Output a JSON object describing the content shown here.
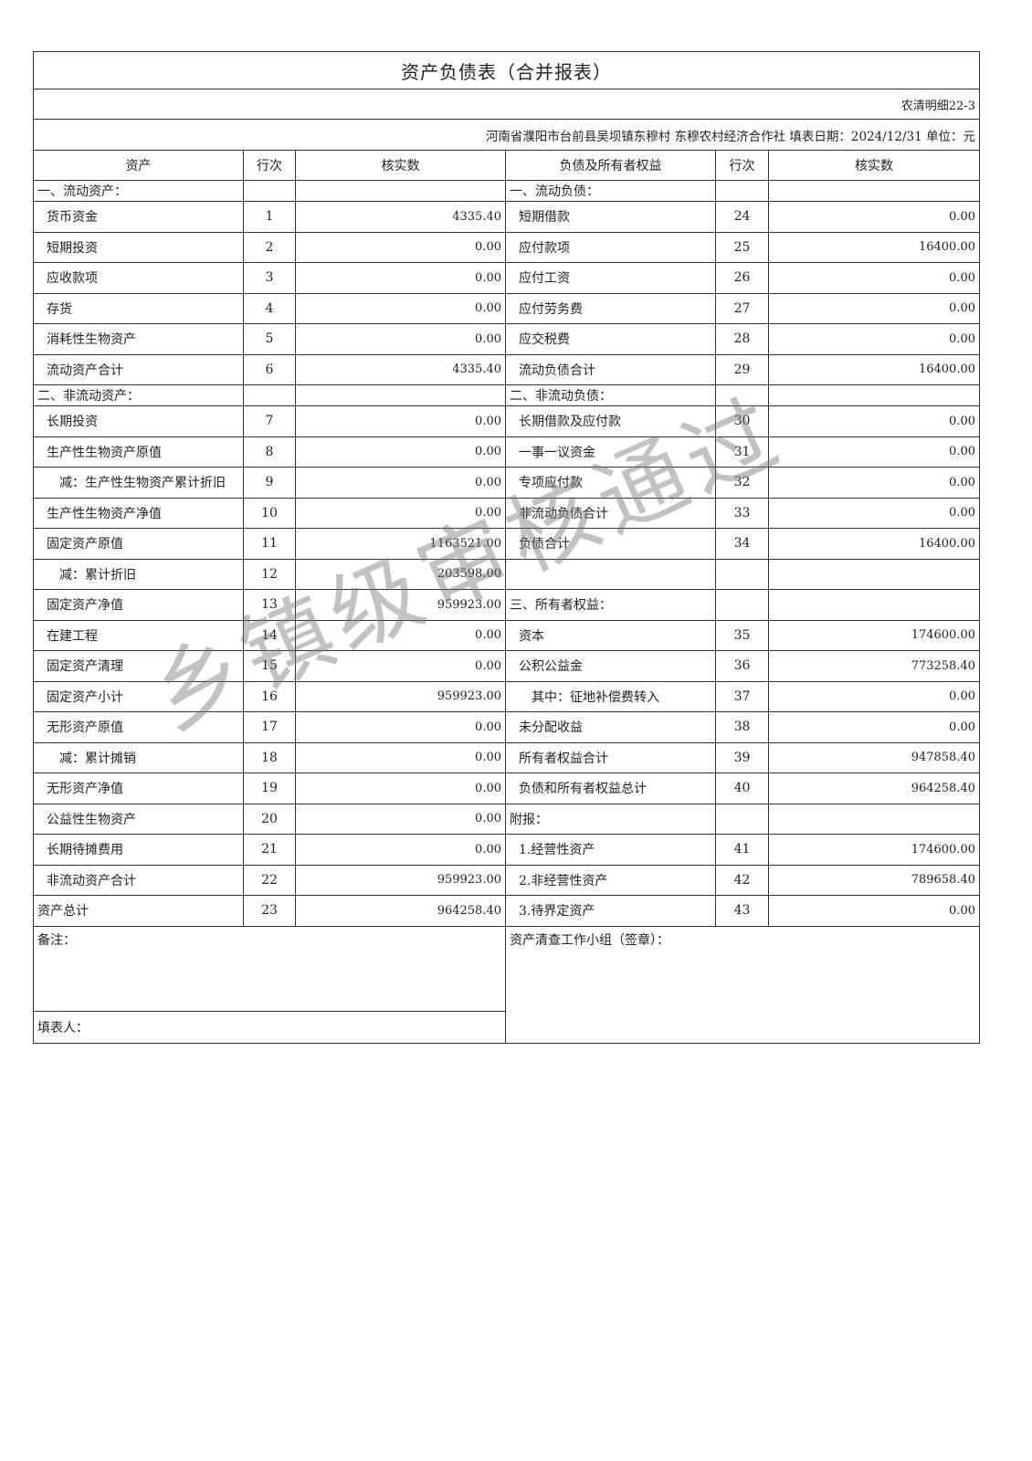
{
  "title": "资产负债表（合并报表）",
  "form_code": "农清明细22-3",
  "info_line": "河南省濮阳市台前县吴坝镇东穆村  东穆农村经济合作社  填表日期：2024/12/31  单位：元",
  "headers": {
    "asset": "资产",
    "line": "行次",
    "amount": "核实数",
    "liability": "负债及所有者权益",
    "line2": "行次",
    "amount2": "核实数"
  },
  "rows": [
    {
      "type": "sec",
      "l": {
        "label": "一、流动资产：",
        "indent": 0
      },
      "r": {
        "label": "一、流动负债：",
        "indent": 0
      }
    },
    {
      "l": {
        "label": "货币资金",
        "no": "1",
        "amt": "4335.40",
        "indent": 1
      },
      "r": {
        "label": "短期借款",
        "no": "24",
        "amt": "0.00",
        "indent": 1
      }
    },
    {
      "l": {
        "label": "短期投资",
        "no": "2",
        "amt": "0.00",
        "indent": 1
      },
      "r": {
        "label": "应付款项",
        "no": "25",
        "amt": "16400.00",
        "indent": 1
      }
    },
    {
      "l": {
        "label": "应收款项",
        "no": "3",
        "amt": "0.00",
        "indent": 1
      },
      "r": {
        "label": "应付工资",
        "no": "26",
        "amt": "0.00",
        "indent": 1
      }
    },
    {
      "l": {
        "label": "存货",
        "no": "4",
        "amt": "0.00",
        "indent": 1
      },
      "r": {
        "label": "应付劳务费",
        "no": "27",
        "amt": "0.00",
        "indent": 1
      }
    },
    {
      "l": {
        "label": "消耗性生物资产",
        "no": "5",
        "amt": "0.00",
        "indent": 1
      },
      "r": {
        "label": "应交税费",
        "no": "28",
        "amt": "0.00",
        "indent": 1
      }
    },
    {
      "l": {
        "label": "流动资产合计",
        "no": "6",
        "amt": "4335.40",
        "indent": 1
      },
      "r": {
        "label": "流动负债合计",
        "no": "29",
        "amt": "16400.00",
        "indent": 1
      }
    },
    {
      "type": "sec",
      "l": {
        "label": "二、非流动资产：",
        "indent": 0
      },
      "r": {
        "label": "二、非流动负债：",
        "indent": 0
      }
    },
    {
      "l": {
        "label": "长期投资",
        "no": "7",
        "amt": "0.00",
        "indent": 1
      },
      "r": {
        "label": "长期借款及应付款",
        "no": "30",
        "amt": "0.00",
        "indent": 1
      }
    },
    {
      "l": {
        "label": "生产性生物资产原值",
        "no": "8",
        "amt": "0.00",
        "indent": 1
      },
      "r": {
        "label": "一事一议资金",
        "no": "31",
        "amt": "0.00",
        "indent": 1
      }
    },
    {
      "l": {
        "label": "减：生产性生物资产累计折旧",
        "no": "9",
        "amt": "0.00",
        "indent": 2
      },
      "r": {
        "label": "专项应付款",
        "no": "32",
        "amt": "0.00",
        "indent": 1
      }
    },
    {
      "l": {
        "label": "生产性生物资产净值",
        "no": "10",
        "amt": "0.00",
        "indent": 1
      },
      "r": {
        "label": "非流动负债合计",
        "no": "33",
        "amt": "0.00",
        "indent": 1
      }
    },
    {
      "l": {
        "label": "固定资产原值",
        "no": "11",
        "amt": "1163521.00",
        "indent": 1
      },
      "r": {
        "label": "负债合计",
        "no": "34",
        "amt": "16400.00",
        "indent": 1
      }
    },
    {
      "l": {
        "label": "减：累计折旧",
        "no": "12",
        "amt": "203598.00",
        "indent": 2
      },
      "r": {
        "label": "",
        "no": "",
        "amt": "",
        "indent": 0
      }
    },
    {
      "l": {
        "label": "固定资产净值",
        "no": "13",
        "amt": "959923.00",
        "indent": 1
      },
      "r": {
        "label": "三、所有者权益：",
        "no": "",
        "amt": "",
        "indent": 0
      }
    },
    {
      "l": {
        "label": "在建工程",
        "no": "14",
        "amt": "0.00",
        "indent": 1
      },
      "r": {
        "label": "资本",
        "no": "35",
        "amt": "174600.00",
        "indent": 1
      }
    },
    {
      "l": {
        "label": "固定资产清理",
        "no": "15",
        "amt": "0.00",
        "indent": 1
      },
      "r": {
        "label": "公积公益金",
        "no": "36",
        "amt": "773258.40",
        "indent": 1
      }
    },
    {
      "l": {
        "label": "固定资产小计",
        "no": "16",
        "amt": "959923.00",
        "indent": 1
      },
      "r": {
        "label": "其中：征地补偿费转入",
        "no": "37",
        "amt": "0.00",
        "indent": 2
      }
    },
    {
      "l": {
        "label": "无形资产原值",
        "no": "17",
        "amt": "0.00",
        "indent": 1
      },
      "r": {
        "label": "未分配收益",
        "no": "38",
        "amt": "0.00",
        "indent": 1
      }
    },
    {
      "l": {
        "label": "减：累计摊销",
        "no": "18",
        "amt": "0.00",
        "indent": 2
      },
      "r": {
        "label": "所有者权益合计",
        "no": "39",
        "amt": "947858.40",
        "indent": 1
      }
    },
    {
      "l": {
        "label": "无形资产净值",
        "no": "19",
        "amt": "0.00",
        "indent": 1
      },
      "r": {
        "label": "负债和所有者权益总计",
        "no": "40",
        "amt": "964258.40",
        "indent": 1
      }
    },
    {
      "l": {
        "label": "公益性生物资产",
        "no": "20",
        "amt": "0.00",
        "indent": 1
      },
      "r": {
        "label": "附报：",
        "no": "",
        "amt": "",
        "indent": 0
      }
    },
    {
      "l": {
        "label": "长期待摊费用",
        "no": "21",
        "amt": "0.00",
        "indent": 1
      },
      "r": {
        "label": "1.经营性资产",
        "no": "41",
        "amt": "174600.00",
        "indent": 1
      }
    },
    {
      "l": {
        "label": "非流动资产合计",
        "no": "22",
        "amt": "959923.00",
        "indent": 1
      },
      "r": {
        "label": "2.非经营性资产",
        "no": "42",
        "amt": "789658.40",
        "indent": 1
      }
    },
    {
      "l": {
        "label": "资产总计",
        "no": "23",
        "amt": "964258.40",
        "indent": 0
      },
      "r": {
        "label": "3.待界定资产",
        "no": "43",
        "amt": "0.00",
        "indent": 1
      }
    }
  ],
  "remarks_label": "备注：",
  "preparer_label": "填表人：",
  "audit_group_label": "资产清查工作小组（签章）：",
  "watermark": "乡镇级审核通过"
}
